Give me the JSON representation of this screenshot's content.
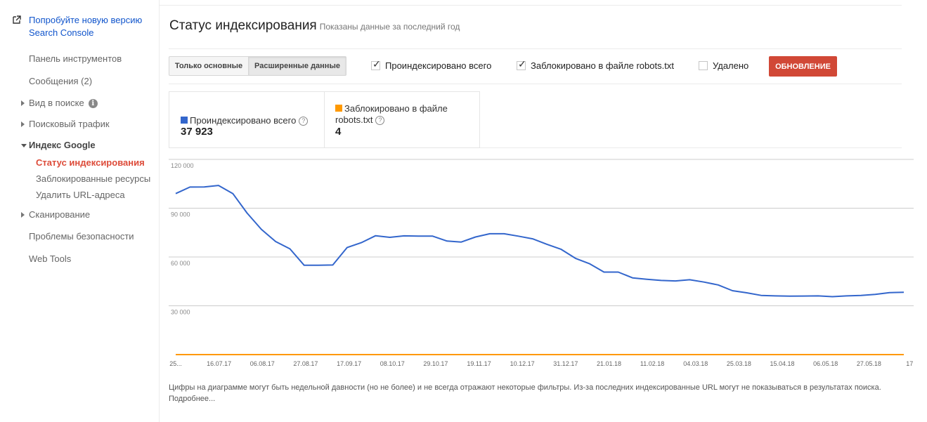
{
  "sidebar": {
    "promo": "Попробуйте новую версию Search Console",
    "items": [
      {
        "label": "Панель инструментов"
      },
      {
        "label": "Сообщения (2)"
      },
      {
        "label": "Вид в поиске"
      },
      {
        "label": "Поисковый трафик"
      },
      {
        "label": "Индекс Google"
      },
      {
        "label": "Сканирование"
      },
      {
        "label": "Проблемы безопасности"
      },
      {
        "label": "Web Tools"
      }
    ],
    "sub_items": [
      {
        "label": "Статус индексирования"
      },
      {
        "label": "Заблокированные ресурсы"
      },
      {
        "label": "Удалить URL-адреса"
      }
    ],
    "info_icon": "i"
  },
  "header": {
    "title": "Статус индексирования",
    "subtitle": "Показаны данные за последний год"
  },
  "controls": {
    "toggle_basic": "Только основные",
    "toggle_advanced": "Расширенные данные",
    "checkboxes": [
      {
        "label": "Проиндексировано всего",
        "checked": true
      },
      {
        "label": "Заблокировано в файле robots.txt",
        "checked": true
      },
      {
        "label": "Удалено",
        "checked": false
      }
    ],
    "update_button": "ОБНОВЛЕНИЕ"
  },
  "summary": {
    "indexed_label": "Проиндексировано всего",
    "indexed_value": "37 923",
    "blocked_label_line1": "Заблокировано в файле",
    "blocked_label_line2": "robots.txt",
    "blocked_value": "4"
  },
  "colors": {
    "indexed": "#3366cc",
    "blocked": "#ff9900",
    "update": "#d14836",
    "active_nav": "#dd4b39",
    "link": "#1155cc"
  },
  "chart_data": {
    "type": "line",
    "ylim": [
      0,
      120000
    ],
    "yticks": [
      120000,
      90000,
      60000,
      30000
    ],
    "ytick_labels": [
      "120 000",
      "90 000",
      "60 000",
      "30 000"
    ],
    "xtick_labels": [
      "25...",
      "16.07.17",
      "06.08.17",
      "27.08.17",
      "17.09.17",
      "08.10.17",
      "29.10.17",
      "19.11.17",
      "10.12.17",
      "31.12.17",
      "21.01.18",
      "11.02.18",
      "04.03.18",
      "25.03.18",
      "15.04.18",
      "06.05.18",
      "27.05.18",
      "17..."
    ],
    "series": [
      {
        "name": "Проиндексировано всего",
        "color": "#3366cc",
        "values": [
          99000,
          103000,
          103100,
          104000,
          99000,
          87000,
          77000,
          69500,
          65000,
          54900,
          54900,
          55100,
          65800,
          68800,
          73100,
          72100,
          73000,
          72800,
          72800,
          69800,
          69200,
          72300,
          74300,
          74300,
          72800,
          71200,
          67800,
          64700,
          59200,
          55800,
          50700,
          50700,
          47200,
          46300,
          45600,
          45300,
          46000,
          44600,
          42800,
          39300,
          38000,
          36400,
          36100,
          35900,
          36000,
          36100,
          35600,
          36100,
          36400,
          37000,
          38100,
          38300
        ]
      },
      {
        "name": "Заблокировано в файле robots.txt",
        "color": "#ff9900",
        "values": [
          4,
          4,
          4,
          4,
          4,
          4,
          4,
          4,
          4,
          4,
          4,
          4,
          4,
          4,
          4,
          4,
          4,
          4,
          4,
          4,
          4,
          4,
          4,
          4,
          4,
          4,
          4,
          4,
          4,
          4,
          4,
          4,
          4,
          4,
          4,
          4,
          4,
          4,
          4,
          4,
          4,
          4,
          4,
          4,
          4,
          4,
          4,
          4,
          4,
          4,
          4,
          4
        ]
      }
    ]
  },
  "footnote": "Цифры на диаграмме могут быть недельной давности (но не более) и не всегда отражают некоторые фильтры. Из-за последних индексированные URL могут не показываться в результатах поиска. Подробнее..."
}
